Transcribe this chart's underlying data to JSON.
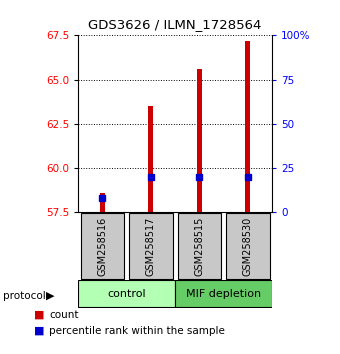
{
  "title": "GDS3626 / ILMN_1728564",
  "samples": [
    "GSM258516",
    "GSM258517",
    "GSM258515",
    "GSM258530"
  ],
  "bar_bottom": 57.5,
  "bar_tops": [
    58.6,
    63.5,
    65.6,
    67.2
  ],
  "percentile_ranks_pct": [
    8,
    20,
    20,
    20
  ],
  "ylim_left": [
    57.5,
    67.5
  ],
  "ylim_right": [
    0,
    100
  ],
  "yticks_left": [
    57.5,
    60.0,
    62.5,
    65.0,
    67.5
  ],
  "yticks_right": [
    0,
    25,
    50,
    75,
    100
  ],
  "ytick_labels_right": [
    "0",
    "25",
    "50",
    "75",
    "100%"
  ],
  "bar_color": "#cc0000",
  "percentile_color": "#0000cc",
  "sample_box_color": "#c8c8c8",
  "control_color": "#b3ffb3",
  "mif_color": "#66cc66",
  "legend_count": "count",
  "legend_percentile": "percentile rank within the sample"
}
